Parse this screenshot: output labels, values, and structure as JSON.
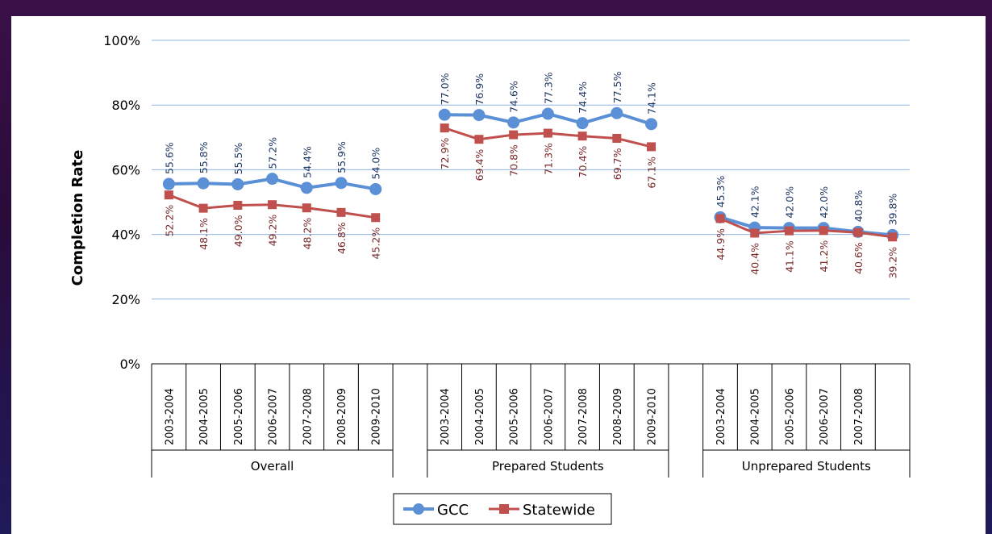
{
  "chart_data": {
    "type": "line",
    "title": "",
    "xlabel": "",
    "ylabel": "Completion Rate",
    "ylim": [
      0,
      100
    ],
    "yticks": [
      "0%",
      "20%",
      "40%",
      "60%",
      "80%",
      "100%"
    ],
    "grid": true,
    "legend_position": "bottom",
    "groups": [
      {
        "name": "Overall",
        "categories": [
          "2003-2004",
          "2004-2005",
          "2005-2006",
          "2006-2007",
          "2007-2008",
          "2008-2009",
          "2009-2010"
        ],
        "series": [
          {
            "name": "GCC",
            "values": [
              55.6,
              55.8,
              55.5,
              57.2,
              54.4,
              55.9,
              54.0
            ],
            "labels": [
              "55.6%",
              "55.8%",
              "55.5%",
              "57.2%",
              "54.4%",
              "55.9%",
              "54.0%"
            ]
          },
          {
            "name": "Statewide",
            "values": [
              52.2,
              48.1,
              49.0,
              49.2,
              48.2,
              46.8,
              45.2
            ],
            "labels": [
              "52.2%",
              "48.1%",
              "49.0%",
              "49.2%",
              "48.2%",
              "46.8%",
              "45.2%"
            ]
          }
        ]
      },
      {
        "name": "Prepared Students",
        "categories": [
          "2003-2004",
          "2004-2005",
          "2005-2006",
          "2006-2007",
          "2007-2008",
          "2008-2009",
          "2009-2010"
        ],
        "series": [
          {
            "name": "GCC",
            "values": [
              77.0,
              76.9,
              74.6,
              77.3,
              74.4,
              77.5,
              74.1
            ],
            "labels": [
              "77.0%",
              "76.9%",
              "74.6%",
              "77.3%",
              "74.4%",
              "77.5%",
              "74.1%"
            ]
          },
          {
            "name": "Statewide",
            "values": [
              72.9,
              69.4,
              70.8,
              71.3,
              70.4,
              69.7,
              67.1
            ],
            "labels": [
              "72.9%",
              "69.4%",
              "70.8%",
              "71.3%",
              "70.4%",
              "69.7%",
              "67.1%"
            ]
          }
        ]
      },
      {
        "name": "Unprepared Students",
        "categories": [
          "2003-2004",
          "2004-2005",
          "2005-2006",
          "2006-2007",
          "2007-2008",
          ""
        ],
        "series": [
          {
            "name": "GCC",
            "values": [
              45.3,
              42.1,
              42.0,
              42.0,
              40.8,
              39.8
            ],
            "labels": [
              "45.3%",
              "42.1%",
              "42.0%",
              "42.0%",
              "40.8%",
              "39.8%"
            ]
          },
          {
            "name": "Statewide",
            "values": [
              44.9,
              40.4,
              41.1,
              41.2,
              40.6,
              39.2
            ],
            "labels": [
              "44.9%",
              "40.4%",
              "41.1%",
              "41.2%",
              "40.6%",
              "39.2%"
            ]
          }
        ]
      }
    ],
    "legend": [
      "GCC",
      "Statewide"
    ],
    "colors": {
      "GCC": "#5b8fd6",
      "Statewide": "#c0504d",
      "GCC_label": "#1f3864",
      "Statewide_label": "#7a2a28",
      "grid": "#8eb4e3"
    }
  }
}
